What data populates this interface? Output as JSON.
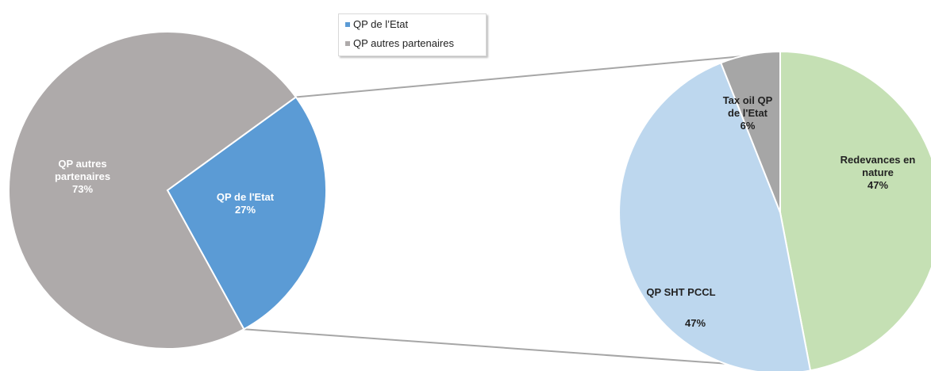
{
  "chart_data": [
    {
      "type": "pie",
      "labels": [
        "QP de l'Etat",
        "QP autres partenaires"
      ],
      "values": [
        27,
        73
      ],
      "value_labels": [
        "27%",
        "73%"
      ],
      "slice_texts": [
        [
          "QP de l'Etat"
        ],
        [
          "QP autres",
          "partenaires"
        ]
      ],
      "colors": [
        "#5b9bd5",
        "#aeaaaa"
      ],
      "legend": {
        "position": "top-center",
        "entries": [
          "QP de l’Etat",
          "QP autres partenaires"
        ]
      }
    },
    {
      "type": "pie",
      "labels": [
        "Redevances en nature",
        "QP SHT PCCL",
        "Tax oil QP de l'Etat"
      ],
      "values": [
        47,
        47,
        6
      ],
      "value_labels": [
        "47%",
        "47%",
        "6%"
      ],
      "slice_texts": [
        [
          "Redevances en",
          "nature"
        ],
        [
          "QP SHT PCCL"
        ],
        [
          "Tax oil QP",
          "de l'Etat"
        ]
      ],
      "colors": [
        "#c5e0b4",
        "#bdd7ee",
        "#a6a6a6"
      ]
    }
  ]
}
